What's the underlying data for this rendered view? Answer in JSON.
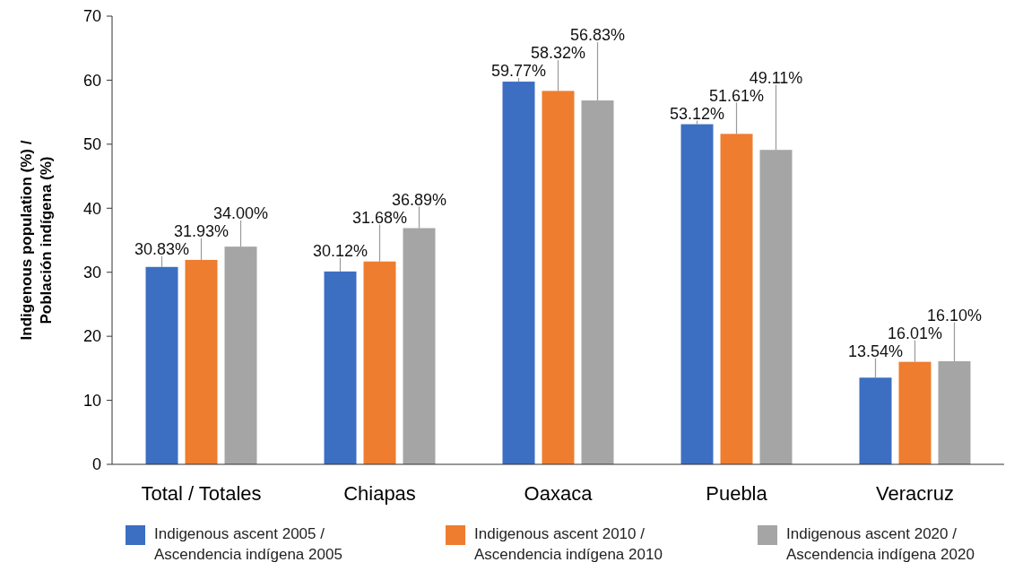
{
  "chart_data": {
    "type": "bar",
    "ylabel": "Indigenous population (%) / Población indígena (%)",
    "categories": [
      "Total / Totales",
      "Chiapas",
      "Oaxaca",
      "Puebla",
      "Veracruz"
    ],
    "series": [
      {
        "name": "Indigenous ascent 2005 / Ascendencia indígena 2005",
        "color": "#3c6fc2",
        "values": [
          30.83,
          30.12,
          59.77,
          53.12,
          13.54
        ],
        "value_labels": [
          "30.83%",
          "30.12%",
          "59.77%",
          "53.12%",
          "13.54%"
        ]
      },
      {
        "name": "Indigenous ascent 2010 / Ascendencia indígena 2010",
        "color": "#ee7d2f",
        "values": [
          31.93,
          31.68,
          58.32,
          51.61,
          16.01
        ],
        "value_labels": [
          "31.93%",
          "31.68%",
          "58.32%",
          "51.61%",
          "16.01%"
        ]
      },
      {
        "name": "Indigenous ascent 2020 / Ascendencia indígena 2020",
        "color": "#a5a5a5",
        "values": [
          34.0,
          36.89,
          56.83,
          49.11,
          16.1
        ],
        "value_labels": [
          "34.00%",
          "36.89%",
          "56.83%",
          "49.11%",
          "16.10%"
        ]
      }
    ],
    "ylim": [
      0,
      70
    ],
    "yticks": [
      0,
      10,
      20,
      30,
      40,
      50,
      60,
      70
    ],
    "grid": false,
    "legend": "bottom"
  }
}
